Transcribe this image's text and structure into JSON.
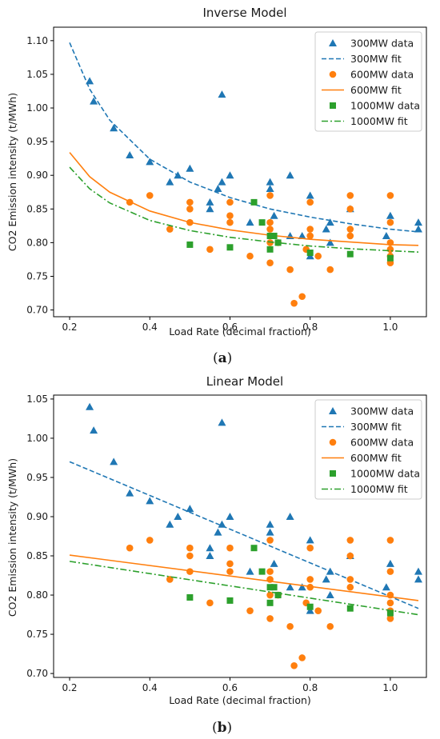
{
  "colors": {
    "300MW": "#1f77b4",
    "600MW": "#ff7f0e",
    "1000MW": "#2ca02c",
    "axis": "#000000",
    "legend_border": "#cccccc"
  },
  "captions": [
    "(a)",
    "(b)"
  ],
  "chart_data": [
    {
      "type": "scatter",
      "title": "Inverse Model",
      "xlabel": "Load Rate (decimal fraction)",
      "ylabel": "CO2 Emission intensity (t/MWh)",
      "xlim": [
        0.16,
        1.09
      ],
      "ylim": [
        0.69,
        1.12
      ],
      "xticks": [
        0.2,
        0.4,
        0.6,
        0.8,
        1.0
      ],
      "xtick_labels": [
        "0.2",
        "0.4",
        "0.6",
        "0.8",
        "1.0"
      ],
      "yticks": [
        0.7,
        0.75,
        0.8,
        0.85,
        0.9,
        0.95,
        1.0,
        1.05,
        1.1
      ],
      "ytick_labels": [
        "0.70",
        "0.75",
        "0.80",
        "0.85",
        "0.90",
        "0.95",
        "1.00",
        "1.05",
        "1.10"
      ],
      "legend_position": "top-right",
      "grid": false,
      "series": [
        {
          "name": "300MW data",
          "kind": "points",
          "marker": "triangle",
          "color": "#1f77b4",
          "points": [
            [
              0.25,
              1.04
            ],
            [
              0.26,
              1.01
            ],
            [
              0.31,
              0.97
            ],
            [
              0.35,
              0.93
            ],
            [
              0.4,
              0.92
            ],
            [
              0.45,
              0.89
            ],
            [
              0.47,
              0.9
            ],
            [
              0.5,
              0.91
            ],
            [
              0.55,
              0.86
            ],
            [
              0.55,
              0.85
            ],
            [
              0.57,
              0.88
            ],
            [
              0.58,
              1.02
            ],
            [
              0.58,
              0.89
            ],
            [
              0.6,
              0.9
            ],
            [
              0.65,
              0.83
            ],
            [
              0.7,
              0.89
            ],
            [
              0.7,
              0.88
            ],
            [
              0.71,
              0.84
            ],
            [
              0.75,
              0.9
            ],
            [
              0.75,
              0.81
            ],
            [
              0.78,
              0.81
            ],
            [
              0.8,
              0.87
            ],
            [
              0.8,
              0.78
            ],
            [
              0.84,
              0.82
            ],
            [
              0.85,
              0.83
            ],
            [
              0.85,
              0.8
            ],
            [
              0.9,
              0.85
            ],
            [
              0.99,
              0.81
            ],
            [
              1.0,
              0.84
            ],
            [
              1.07,
              0.83
            ],
            [
              1.07,
              0.82
            ]
          ]
        },
        {
          "name": "300MW fit",
          "kind": "line",
          "style": "dashed",
          "color": "#1f77b4",
          "points": [
            [
              0.2,
              1.097
            ],
            [
              0.25,
              1.028
            ],
            [
              0.3,
              0.982
            ],
            [
              0.4,
              0.924
            ],
            [
              0.5,
              0.89
            ],
            [
              0.6,
              0.867
            ],
            [
              0.7,
              0.85
            ],
            [
              0.8,
              0.838
            ],
            [
              0.9,
              0.828
            ],
            [
              1.0,
              0.82
            ],
            [
              1.07,
              0.816
            ]
          ]
        },
        {
          "name": "600MW data",
          "kind": "points",
          "marker": "circle",
          "color": "#ff7f0e",
          "points": [
            [
              0.35,
              0.86
            ],
            [
              0.4,
              0.87
            ],
            [
              0.45,
              0.82
            ],
            [
              0.5,
              0.86
            ],
            [
              0.5,
              0.85
            ],
            [
              0.5,
              0.83
            ],
            [
              0.55,
              0.79
            ],
            [
              0.6,
              0.86
            ],
            [
              0.6,
              0.84
            ],
            [
              0.6,
              0.83
            ],
            [
              0.65,
              0.78
            ],
            [
              0.7,
              0.87
            ],
            [
              0.7,
              0.83
            ],
            [
              0.7,
              0.82
            ],
            [
              0.7,
              0.8
            ],
            [
              0.7,
              0.77
            ],
            [
              0.72,
              0.8
            ],
            [
              0.75,
              0.76
            ],
            [
              0.76,
              0.71
            ],
            [
              0.78,
              0.72
            ],
            [
              0.79,
              0.79
            ],
            [
              0.8,
              0.86
            ],
            [
              0.8,
              0.82
            ],
            [
              0.8,
              0.81
            ],
            [
              0.82,
              0.78
            ],
            [
              0.85,
              0.76
            ],
            [
              0.9,
              0.87
            ],
            [
              0.9,
              0.85
            ],
            [
              0.9,
              0.82
            ],
            [
              0.9,
              0.81
            ],
            [
              1.0,
              0.87
            ],
            [
              1.0,
              0.83
            ],
            [
              1.0,
              0.8
            ],
            [
              1.0,
              0.79
            ],
            [
              1.0,
              0.78
            ],
            [
              1.0,
              0.77
            ]
          ]
        },
        {
          "name": "600MW fit",
          "kind": "line",
          "style": "solid",
          "color": "#ff7f0e",
          "points": [
            [
              0.2,
              0.934
            ],
            [
              0.25,
              0.898
            ],
            [
              0.3,
              0.875
            ],
            [
              0.4,
              0.847
            ],
            [
              0.5,
              0.83
            ],
            [
              0.6,
              0.819
            ],
            [
              0.7,
              0.811
            ],
            [
              0.8,
              0.805
            ],
            [
              0.9,
              0.801
            ],
            [
              1.0,
              0.797
            ],
            [
              1.07,
              0.796
            ]
          ]
        },
        {
          "name": "1000MW data",
          "kind": "points",
          "marker": "square",
          "color": "#2ca02c",
          "points": [
            [
              0.5,
              0.797
            ],
            [
              0.6,
              0.793
            ],
            [
              0.66,
              0.86
            ],
            [
              0.68,
              0.83
            ],
            [
              0.7,
              0.79
            ],
            [
              0.7,
              0.81
            ],
            [
              0.71,
              0.81
            ],
            [
              0.72,
              0.8
            ],
            [
              0.8,
              0.785
            ],
            [
              0.9,
              0.783
            ],
            [
              1.0,
              0.777
            ]
          ]
        },
        {
          "name": "1000MW fit",
          "kind": "line",
          "style": "dashdot",
          "color": "#2ca02c",
          "points": [
            [
              0.2,
              0.912
            ],
            [
              0.25,
              0.88
            ],
            [
              0.3,
              0.859
            ],
            [
              0.4,
              0.833
            ],
            [
              0.5,
              0.818
            ],
            [
              0.6,
              0.808
            ],
            [
              0.7,
              0.801
            ],
            [
              0.8,
              0.795
            ],
            [
              0.9,
              0.791
            ],
            [
              1.0,
              0.788
            ],
            [
              1.07,
              0.786
            ]
          ]
        }
      ]
    },
    {
      "type": "scatter",
      "title": "Linear Model",
      "xlabel": "Load Rate (decimal fraction)",
      "ylabel": "CO2 Emission intensity (t/MWh)",
      "xlim": [
        0.16,
        1.09
      ],
      "ylim": [
        0.695,
        1.055
      ],
      "xticks": [
        0.2,
        0.4,
        0.6,
        0.8,
        1.0
      ],
      "xtick_labels": [
        "0.2",
        "0.4",
        "0.6",
        "0.8",
        "1.0"
      ],
      "yticks": [
        0.7,
        0.75,
        0.8,
        0.85,
        0.9,
        0.95,
        1.0,
        1.05
      ],
      "ytick_labels": [
        "0.70",
        "0.75",
        "0.80",
        "0.85",
        "0.90",
        "0.95",
        "1.00",
        "1.05"
      ],
      "legend_position": "top-right",
      "grid": false,
      "series": [
        {
          "name": "300MW data",
          "kind": "points",
          "marker": "triangle",
          "color": "#1f77b4",
          "points": [
            [
              0.25,
              1.04
            ],
            [
              0.26,
              1.01
            ],
            [
              0.31,
              0.97
            ],
            [
              0.35,
              0.93
            ],
            [
              0.4,
              0.92
            ],
            [
              0.45,
              0.89
            ],
            [
              0.47,
              0.9
            ],
            [
              0.5,
              0.91
            ],
            [
              0.55,
              0.86
            ],
            [
              0.55,
              0.85
            ],
            [
              0.57,
              0.88
            ],
            [
              0.58,
              1.02
            ],
            [
              0.58,
              0.89
            ],
            [
              0.6,
              0.9
            ],
            [
              0.65,
              0.83
            ],
            [
              0.7,
              0.89
            ],
            [
              0.7,
              0.88
            ],
            [
              0.71,
              0.84
            ],
            [
              0.75,
              0.9
            ],
            [
              0.75,
              0.81
            ],
            [
              0.78,
              0.81
            ],
            [
              0.8,
              0.87
            ],
            [
              0.8,
              0.78
            ],
            [
              0.84,
              0.82
            ],
            [
              0.85,
              0.83
            ],
            [
              0.85,
              0.8
            ],
            [
              0.9,
              0.85
            ],
            [
              0.99,
              0.81
            ],
            [
              1.0,
              0.84
            ],
            [
              1.07,
              0.83
            ],
            [
              1.07,
              0.82
            ]
          ]
        },
        {
          "name": "300MW fit",
          "kind": "line",
          "style": "dashed",
          "color": "#1f77b4",
          "points": [
            [
              0.2,
              0.97
            ],
            [
              1.07,
              0.783
            ]
          ]
        },
        {
          "name": "600MW data",
          "kind": "points",
          "marker": "circle",
          "color": "#ff7f0e",
          "points": [
            [
              0.35,
              0.86
            ],
            [
              0.4,
              0.87
            ],
            [
              0.45,
              0.82
            ],
            [
              0.5,
              0.86
            ],
            [
              0.5,
              0.85
            ],
            [
              0.5,
              0.83
            ],
            [
              0.55,
              0.79
            ],
            [
              0.6,
              0.86
            ],
            [
              0.6,
              0.84
            ],
            [
              0.6,
              0.83
            ],
            [
              0.65,
              0.78
            ],
            [
              0.7,
              0.87
            ],
            [
              0.7,
              0.83
            ],
            [
              0.7,
              0.82
            ],
            [
              0.7,
              0.8
            ],
            [
              0.7,
              0.77
            ],
            [
              0.72,
              0.8
            ],
            [
              0.75,
              0.76
            ],
            [
              0.76,
              0.71
            ],
            [
              0.78,
              0.72
            ],
            [
              0.79,
              0.79
            ],
            [
              0.8,
              0.86
            ],
            [
              0.8,
              0.82
            ],
            [
              0.8,
              0.81
            ],
            [
              0.82,
              0.78
            ],
            [
              0.85,
              0.76
            ],
            [
              0.9,
              0.87
            ],
            [
              0.9,
              0.85
            ],
            [
              0.9,
              0.82
            ],
            [
              0.9,
              0.81
            ],
            [
              1.0,
              0.87
            ],
            [
              1.0,
              0.83
            ],
            [
              1.0,
              0.8
            ],
            [
              1.0,
              0.79
            ],
            [
              1.0,
              0.78
            ],
            [
              1.0,
              0.77
            ]
          ]
        },
        {
          "name": "600MW fit",
          "kind": "line",
          "style": "solid",
          "color": "#ff7f0e",
          "points": [
            [
              0.2,
              0.851
            ],
            [
              1.07,
              0.793
            ]
          ]
        },
        {
          "name": "1000MW data",
          "kind": "points",
          "marker": "square",
          "color": "#2ca02c",
          "points": [
            [
              0.5,
              0.797
            ],
            [
              0.6,
              0.793
            ],
            [
              0.66,
              0.86
            ],
            [
              0.68,
              0.83
            ],
            [
              0.7,
              0.79
            ],
            [
              0.7,
              0.81
            ],
            [
              0.71,
              0.81
            ],
            [
              0.72,
              0.8
            ],
            [
              0.8,
              0.785
            ],
            [
              0.9,
              0.783
            ],
            [
              1.0,
              0.777
            ]
          ]
        },
        {
          "name": "1000MW fit",
          "kind": "line",
          "style": "dashdot",
          "color": "#2ca02c",
          "points": [
            [
              0.2,
              0.843
            ],
            [
              1.07,
              0.775
            ]
          ]
        }
      ]
    }
  ]
}
